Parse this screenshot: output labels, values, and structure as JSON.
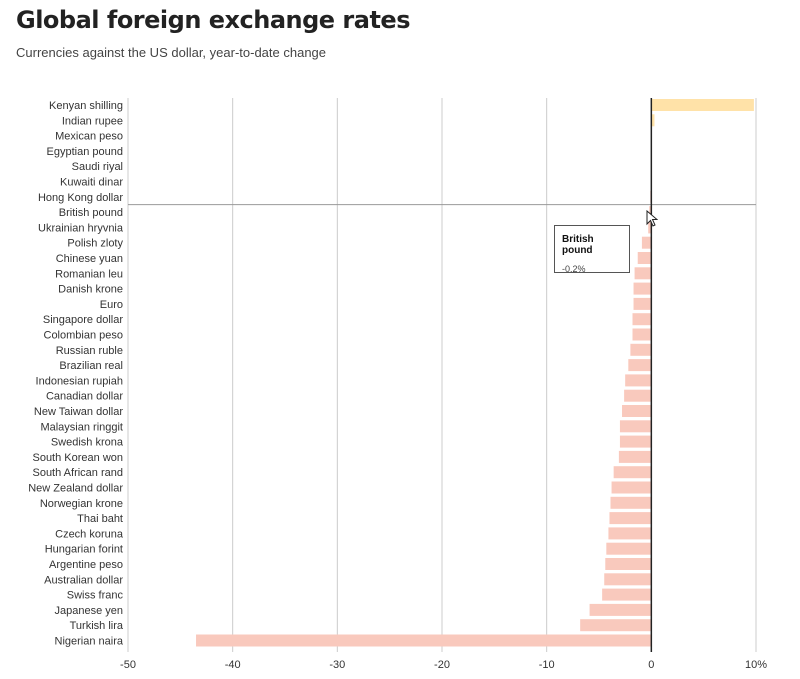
{
  "header": {
    "title": "Global foreign exchange rates",
    "subtitle": "Currencies against the US dollar, year-to-date change"
  },
  "tooltip": {
    "title": "British pound",
    "value": "-0.2%"
  },
  "colors": {
    "positive": "#ffe2a8",
    "negative": "#f9c9bd",
    "grid": "#cccccc",
    "zero_line": "#222222",
    "highlight_line": "#999999"
  },
  "chart_data": {
    "type": "bar",
    "orientation": "horizontal",
    "title": "Global foreign exchange rates",
    "subtitle": "Currencies against the US dollar, year-to-date change",
    "categories": [
      "Kenyan shilling",
      "Indian rupee",
      "Mexican peso",
      "Egyptian pound",
      "Saudi riyal",
      "Kuwaiti dinar",
      "Hong Kong dollar",
      "British pound",
      "Ukrainian hryvnia",
      "Polish zloty",
      "Chinese yuan",
      "Romanian leu",
      "Danish krone",
      "Euro",
      "Singapore dollar",
      "Colombian peso",
      "Russian ruble",
      "Brazilian real",
      "Indonesian rupiah",
      "Canadian dollar",
      "New Taiwan dollar",
      "Malaysian ringgit",
      "Swedish krona",
      "South Korean won",
      "South African rand",
      "New Zealand dollar",
      "Norwegian krone",
      "Thai baht",
      "Czech koruna",
      "Hungarian forint",
      "Argentine peso",
      "Australian dollar",
      "Swiss franc",
      "Japanese yen",
      "Turkish lira",
      "Nigerian naira"
    ],
    "values": [
      9.8,
      0.3,
      0.0,
      0.0,
      0.0,
      0.0,
      -0.1,
      -0.2,
      -0.3,
      -0.9,
      -1.3,
      -1.6,
      -1.7,
      -1.7,
      -1.8,
      -1.8,
      -2.0,
      -2.2,
      -2.5,
      -2.6,
      -2.8,
      -3.0,
      -3.0,
      -3.1,
      -3.6,
      -3.8,
      -3.9,
      -4.0,
      -4.1,
      -4.3,
      -4.4,
      -4.5,
      -4.7,
      -5.9,
      -6.8,
      -43.5
    ],
    "highlighted": "British pound",
    "xlim": [
      -50,
      10
    ],
    "xticks": [
      -50,
      -40,
      -30,
      -20,
      -10,
      0,
      10
    ],
    "xtick_labels": [
      "-50",
      "-40",
      "-30",
      "-20",
      "-10",
      "0",
      "10%"
    ],
    "grid": true,
    "legend": "none"
  }
}
